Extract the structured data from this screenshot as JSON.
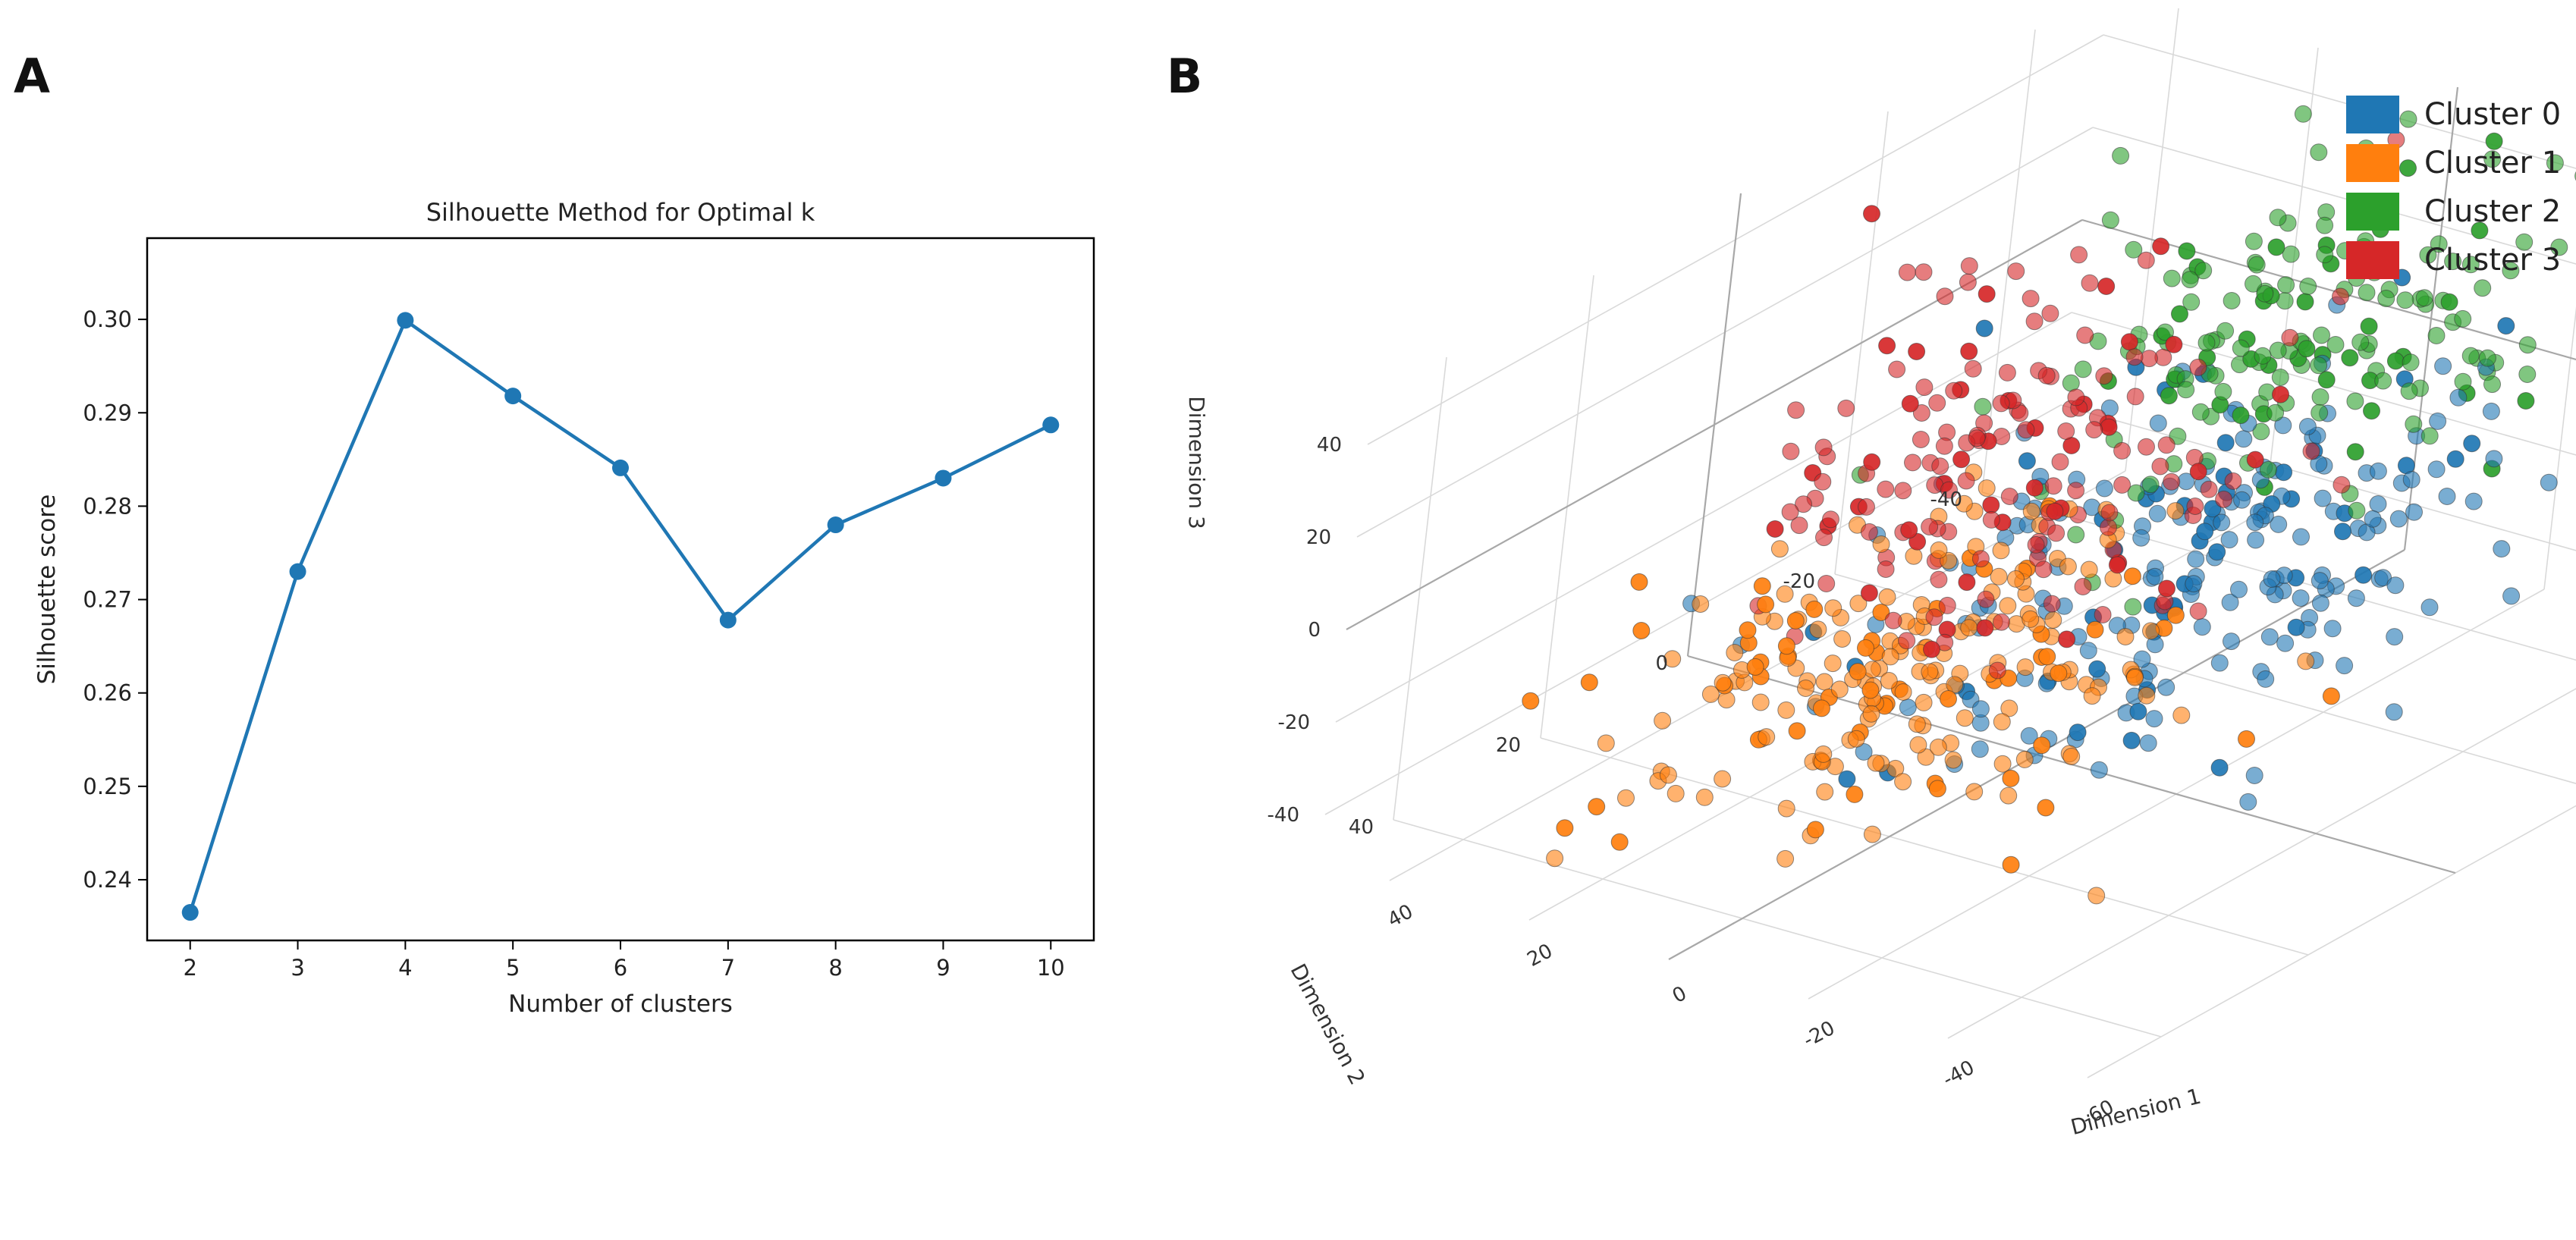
{
  "panels": {
    "a": "A",
    "b": "B"
  },
  "colors": {
    "line": "#1f77b4",
    "cluster_0": "#1f77b4",
    "cluster_1": "#ff7f0e",
    "cluster_2": "#2ca02c",
    "cluster_3": "#d62728"
  },
  "chart_data": [
    {
      "type": "line",
      "title": "Silhouette Method for Optimal k",
      "xlabel": "Number of clusters",
      "ylabel": "Silhouette score",
      "x": [
        2,
        3,
        4,
        5,
        6,
        7,
        8,
        9,
        10
      ],
      "y": [
        0.2365,
        0.273,
        0.2999,
        0.2918,
        0.2841,
        0.2678,
        0.278,
        0.283,
        0.2887
      ],
      "xticks": [
        "2",
        "3",
        "4",
        "5",
        "6",
        "7",
        "8",
        "9",
        "10"
      ],
      "yticks": [
        "0.24",
        "0.25",
        "0.26",
        "0.27",
        "0.28",
        "0.29",
        "0.30"
      ],
      "ytick_values": [
        0.24,
        0.25,
        0.26,
        0.27,
        0.28,
        0.29,
        0.3
      ],
      "xlim": [
        1.6,
        10.4
      ],
      "ylim": [
        0.2335,
        0.3087
      ],
      "grid": false
    },
    {
      "type": "scatter",
      "subtype": "3d",
      "xlabel": "Dimension 1",
      "ylabel": "Dimension 2",
      "zlabel": "Dimension 3",
      "dim1_ticks": [
        "-60",
        "-40",
        "-20",
        "0",
        "20",
        "40"
      ],
      "dim1_tick_values": [
        -60,
        -40,
        -20,
        0,
        20,
        40
      ],
      "dim2_ticks": [
        "-40",
        "-20",
        "0",
        "20",
        "40"
      ],
      "dim2_tick_values": [
        -40,
        -20,
        0,
        20,
        40
      ],
      "dim3_ticks": [
        "40",
        "20",
        "0",
        "-20",
        "-40"
      ],
      "dim3_tick_values": [
        40,
        20,
        0,
        -20,
        -40
      ],
      "legend": [
        "Cluster 0",
        "Cluster 1",
        "Cluster 2",
        "Cluster 3"
      ],
      "legend_position": "top-right",
      "series": [
        {
          "name": "Cluster 0",
          "count": 230,
          "center": [
            -25,
            5,
            8
          ],
          "spread": [
            14,
            16,
            18
          ]
        },
        {
          "name": "Cluster 1",
          "count": 230,
          "center": [
            8,
            10,
            -28
          ],
          "spread": [
            14,
            14,
            12
          ]
        },
        {
          "name": "Cluster 2",
          "count": 175,
          "center": [
            -8,
            -22,
            25
          ],
          "spread": [
            14,
            14,
            14
          ]
        },
        {
          "name": "Cluster 3",
          "count": 175,
          "center": [
            25,
            -18,
            -12
          ],
          "spread": [
            12,
            12,
            20
          ]
        }
      ]
    }
  ]
}
